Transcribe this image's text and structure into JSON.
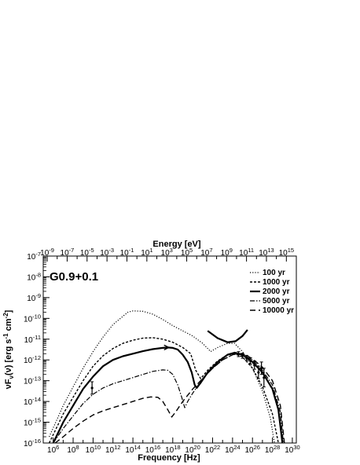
{
  "chart_data": {
    "type": "line",
    "title": "G0.9+0.1",
    "xlabel": "Frequency [Hz]",
    "ylabel": "νF_ν(ν) [erg s^-1 cm^-2]",
    "ylabel_parts": {
      "main": "νF",
      "sub": "ν",
      "mid": "(ν) [erg s",
      "sup1": "-1",
      "mid2": " cm",
      "sup2": "-2",
      "end": "]"
    },
    "top_xlabel": "Energy [eV]",
    "xscale": "log",
    "yscale": "log",
    "x_log_range": [
      5,
      30.4
    ],
    "y_log_range": [
      -16,
      -7
    ],
    "top_log_range": [
      -9.4,
      16
    ],
    "x_ticks": [
      {
        "exp": 6,
        "label": "10",
        "sup": "6"
      },
      {
        "exp": 8,
        "label": "10",
        "sup": "8"
      },
      {
        "exp": 10,
        "label": "10",
        "sup": "10"
      },
      {
        "exp": 12,
        "label": "10",
        "sup": "12"
      },
      {
        "exp": 14,
        "label": "10",
        "sup": "14"
      },
      {
        "exp": 16,
        "label": "10",
        "sup": "16"
      },
      {
        "exp": 18,
        "label": "10",
        "sup": "18"
      },
      {
        "exp": 20,
        "label": "10",
        "sup": "20"
      },
      {
        "exp": 22,
        "label": "10",
        "sup": "22"
      },
      {
        "exp": 24,
        "label": "10",
        "sup": "24"
      },
      {
        "exp": 26,
        "label": "10",
        "sup": "26"
      },
      {
        "exp": 28,
        "label": "10",
        "sup": "28"
      },
      {
        "exp": 30,
        "label": "10",
        "sup": "30"
      }
    ],
    "top_ticks": [
      {
        "exp": -9,
        "label": "10",
        "sup": "-9"
      },
      {
        "exp": -7,
        "label": "10",
        "sup": "-7"
      },
      {
        "exp": -5,
        "label": "10",
        "sup": "-5"
      },
      {
        "exp": -3,
        "label": "10",
        "sup": "-3"
      },
      {
        "exp": -1,
        "label": "10",
        "sup": "-1"
      },
      {
        "exp": 1,
        "label": "10",
        "sup": "1"
      },
      {
        "exp": 3,
        "label": "10",
        "sup": "3"
      },
      {
        "exp": 5,
        "label": "10",
        "sup": "5"
      },
      {
        "exp": 7,
        "label": "10",
        "sup": "7"
      },
      {
        "exp": 9,
        "label": "10",
        "sup": "9"
      },
      {
        "exp": 11,
        "label": "10",
        "sup": "11"
      },
      {
        "exp": 13,
        "label": "10",
        "sup": "13"
      },
      {
        "exp": 15,
        "label": "10",
        "sup": "15"
      }
    ],
    "y_ticks": [
      {
        "exp": -16,
        "label": "10",
        "sup": "-16"
      },
      {
        "exp": -15,
        "label": "10",
        "sup": "-15"
      },
      {
        "exp": -14,
        "label": "10",
        "sup": "-14"
      },
      {
        "exp": -13,
        "label": "10",
        "sup": "-13"
      },
      {
        "exp": -12,
        "label": "10",
        "sup": "-12"
      },
      {
        "exp": -11,
        "label": "10",
        "sup": "-11"
      },
      {
        "exp": -10,
        "label": "10",
        "sup": "-10"
      },
      {
        "exp": -9,
        "label": "10",
        "sup": "-9"
      },
      {
        "exp": -8,
        "label": "10",
        "sup": "-8"
      },
      {
        "exp": -7,
        "label": "10",
        "sup": "-7"
      }
    ],
    "series": [
      {
        "name": "100 yr",
        "style": "dotted",
        "points": [
          [
            5.6,
            -15.7
          ],
          [
            7.0,
            -14.2
          ],
          [
            8.0,
            -13.3
          ],
          [
            9.0,
            -12.4
          ],
          [
            10.0,
            -11.6
          ],
          [
            11.0,
            -10.9
          ],
          [
            12.0,
            -10.3
          ],
          [
            13.0,
            -9.9
          ],
          [
            13.5,
            -9.7
          ],
          [
            14.0,
            -9.64
          ],
          [
            15.0,
            -9.66
          ],
          [
            16.0,
            -9.8
          ],
          [
            17.0,
            -10.05
          ],
          [
            18.0,
            -10.35
          ],
          [
            19.0,
            -10.6
          ],
          [
            20.0,
            -10.85
          ],
          [
            21.0,
            -11.2
          ],
          [
            21.8,
            -11.6
          ],
          [
            22.5,
            -11.4
          ],
          [
            23.5,
            -11.2
          ],
          [
            24.2,
            -11.2
          ],
          [
            25.0,
            -11.6
          ],
          [
            26.0,
            -12.4
          ],
          [
            27.0,
            -13.5
          ],
          [
            27.8,
            -14.8
          ],
          [
            28.2,
            -16.0
          ]
        ]
      },
      {
        "name": "1000 yr",
        "style": "dashed-short",
        "points": [
          [
            5.6,
            -16.0
          ],
          [
            7.0,
            -14.6
          ],
          [
            8.0,
            -13.8
          ],
          [
            9.0,
            -13.0
          ],
          [
            10.0,
            -12.3
          ],
          [
            11.0,
            -11.8
          ],
          [
            12.0,
            -11.45
          ],
          [
            13.0,
            -11.2
          ],
          [
            14.0,
            -11.05
          ],
          [
            15.0,
            -10.95
          ],
          [
            16.0,
            -10.93
          ],
          [
            17.0,
            -11.0
          ],
          [
            18.0,
            -11.15
          ],
          [
            19.0,
            -11.4
          ],
          [
            19.8,
            -11.7
          ],
          [
            20.3,
            -12.5
          ],
          [
            20.8,
            -12.9
          ],
          [
            21.5,
            -12.5
          ],
          [
            22.5,
            -12.05
          ],
          [
            23.5,
            -11.75
          ],
          [
            24.3,
            -11.72
          ],
          [
            25.0,
            -11.85
          ],
          [
            26.0,
            -12.4
          ],
          [
            27.0,
            -13.3
          ],
          [
            28.0,
            -14.6
          ],
          [
            28.6,
            -16.0
          ]
        ]
      },
      {
        "name": "2000 yr",
        "style": "solid",
        "points": [
          [
            6.0,
            -16.0
          ],
          [
            7.0,
            -15.0
          ],
          [
            8.0,
            -14.2
          ],
          [
            9.0,
            -13.4
          ],
          [
            10.0,
            -12.8
          ],
          [
            11.0,
            -12.3
          ],
          [
            12.0,
            -12.0
          ],
          [
            13.0,
            -11.82
          ],
          [
            14.0,
            -11.7
          ],
          [
            15.0,
            -11.58
          ],
          [
            16.0,
            -11.48
          ],
          [
            17.0,
            -11.42
          ],
          [
            17.5,
            -11.4
          ],
          [
            18.0,
            -11.42
          ],
          [
            18.5,
            -11.5
          ],
          [
            19.0,
            -11.75
          ],
          [
            19.5,
            -12.1
          ],
          [
            19.9,
            -12.6
          ],
          [
            20.2,
            -13.2
          ],
          [
            20.4,
            -13.35
          ],
          [
            20.8,
            -13.1
          ],
          [
            21.5,
            -12.6
          ],
          [
            22.5,
            -12.1
          ],
          [
            23.5,
            -11.75
          ],
          [
            24.2,
            -11.65
          ],
          [
            25.0,
            -11.75
          ],
          [
            26.0,
            -12.1
          ],
          [
            27.0,
            -12.6
          ],
          [
            28.0,
            -13.4
          ],
          [
            28.6,
            -14.4
          ],
          [
            29.0,
            -16.0
          ]
        ]
      },
      {
        "name": "5000 yr",
        "style": "dashdot",
        "points": [
          [
            6.0,
            -16.0
          ],
          [
            7.0,
            -15.3
          ],
          [
            8.0,
            -14.7
          ],
          [
            9.0,
            -14.1
          ],
          [
            10.0,
            -13.65
          ],
          [
            11.0,
            -13.35
          ],
          [
            12.0,
            -13.15
          ],
          [
            13.0,
            -13.0
          ],
          [
            14.0,
            -12.85
          ],
          [
            15.0,
            -12.7
          ],
          [
            16.0,
            -12.55
          ],
          [
            17.0,
            -12.48
          ],
          [
            17.5,
            -12.5
          ],
          [
            18.0,
            -12.7
          ],
          [
            18.5,
            -13.2
          ],
          [
            18.9,
            -13.8
          ],
          [
            19.2,
            -14.3
          ],
          [
            19.5,
            -14.0
          ],
          [
            20.0,
            -13.6
          ],
          [
            21.0,
            -12.9
          ],
          [
            22.0,
            -12.4
          ],
          [
            23.0,
            -12.0
          ],
          [
            24.0,
            -11.75
          ],
          [
            24.5,
            -11.7
          ],
          [
            25.0,
            -11.75
          ],
          [
            26.0,
            -12.0
          ],
          [
            27.0,
            -12.5
          ],
          [
            28.0,
            -13.2
          ],
          [
            28.8,
            -14.5
          ],
          [
            29.1,
            -16.0
          ]
        ]
      },
      {
        "name": "10000 yr",
        "style": "dashed-long",
        "points": [
          [
            6.2,
            -16.0
          ],
          [
            7.0,
            -15.7
          ],
          [
            8.0,
            -15.3
          ],
          [
            9.0,
            -14.95
          ],
          [
            10.0,
            -14.65
          ],
          [
            11.0,
            -14.45
          ],
          [
            12.0,
            -14.3
          ],
          [
            13.0,
            -14.15
          ],
          [
            14.0,
            -14.0
          ],
          [
            15.0,
            -13.85
          ],
          [
            15.8,
            -13.78
          ],
          [
            16.5,
            -13.8
          ],
          [
            17.0,
            -14.0
          ],
          [
            17.5,
            -14.4
          ],
          [
            17.9,
            -14.75
          ],
          [
            18.3,
            -14.5
          ],
          [
            19.0,
            -14.0
          ],
          [
            20.0,
            -13.4
          ],
          [
            21.0,
            -12.9
          ],
          [
            22.0,
            -12.4
          ],
          [
            23.0,
            -12.0
          ],
          [
            24.0,
            -11.75
          ],
          [
            24.6,
            -11.7
          ],
          [
            25.2,
            -11.72
          ],
          [
            26.0,
            -11.95
          ],
          [
            27.0,
            -12.35
          ],
          [
            28.0,
            -13.0
          ],
          [
            28.8,
            -14.2
          ],
          [
            29.2,
            -16.0
          ]
        ]
      }
    ],
    "hess_bowtie": [
      [
        21.5,
        -10.6
      ],
      [
        22.5,
        -10.95
      ],
      [
        23.5,
        -11.15
      ],
      [
        24.3,
        -11.1
      ],
      [
        25.0,
        -10.85
      ],
      [
        25.5,
        -10.55
      ]
    ],
    "data_points": [
      {
        "x": 9.9,
        "y": -13.35,
        "err": 0.3
      },
      {
        "x": 24.6,
        "y": -11.72,
        "err": 0.12
      },
      {
        "x": 25.0,
        "y": -11.8,
        "err": 0.12
      },
      {
        "x": 25.4,
        "y": -11.9,
        "err": 0.12
      },
      {
        "x": 25.8,
        "y": -12.05,
        "err": 0.15
      },
      {
        "x": 26.2,
        "y": -12.25,
        "err": 0.2
      },
      {
        "x": 26.6,
        "y": -12.6,
        "err": 0.3
      },
      {
        "x": 26.9,
        "y": -12.4,
        "err": 0.3
      },
      {
        "x": 27.15,
        "y": -12.85,
        "err": 0.45
      }
    ],
    "arrow": {
      "x": 17.6,
      "y": -11.4
    },
    "legend_placement": "top-right",
    "grid": false
  }
}
